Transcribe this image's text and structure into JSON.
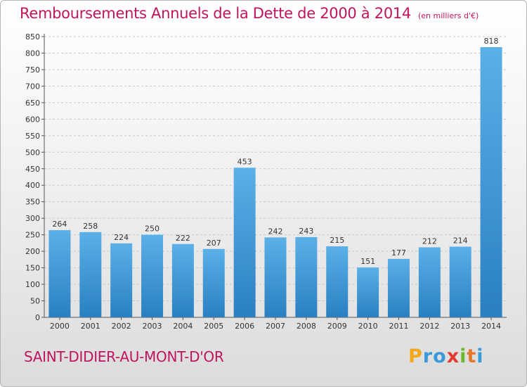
{
  "title": "Remboursements Annuels de la Dette de 2000 à 2014",
  "title_unit": "(en milliers d'€)",
  "city": "SAINT-DIDIER-AU-MONT-D'OR",
  "logo": {
    "letters": [
      "P",
      "r",
      "o",
      "x",
      "i",
      "t",
      "i"
    ],
    "colors": [
      "#f2a81c",
      "#3a9ad9",
      "#3a9ad9",
      "#e23a2e",
      "#6bb82a",
      "#e8772e",
      "#3a9ad9"
    ]
  },
  "colors": {
    "title": "#c0145e",
    "bar_top": "#5bb0e8",
    "bar_bottom": "#2a7fc0",
    "grid": "#c8c8c8"
  },
  "chart_data": {
    "type": "bar",
    "title": "Remboursements Annuels de la Dette de 2000 à 2014",
    "ylabel": "",
    "xlabel": "",
    "categories": [
      "2000",
      "2001",
      "2002",
      "2003",
      "2004",
      "2005",
      "2006",
      "2007",
      "2008",
      "2009",
      "2010",
      "2011",
      "2012",
      "2013",
      "2014"
    ],
    "values": [
      264,
      258,
      224,
      250,
      222,
      207,
      453,
      242,
      243,
      215,
      151,
      177,
      212,
      214,
      818
    ],
    "ylim": [
      0,
      850
    ],
    "yticks": [
      0,
      50,
      100,
      150,
      200,
      250,
      300,
      350,
      400,
      450,
      500,
      550,
      600,
      650,
      700,
      750,
      800,
      850
    ],
    "grid": true
  }
}
